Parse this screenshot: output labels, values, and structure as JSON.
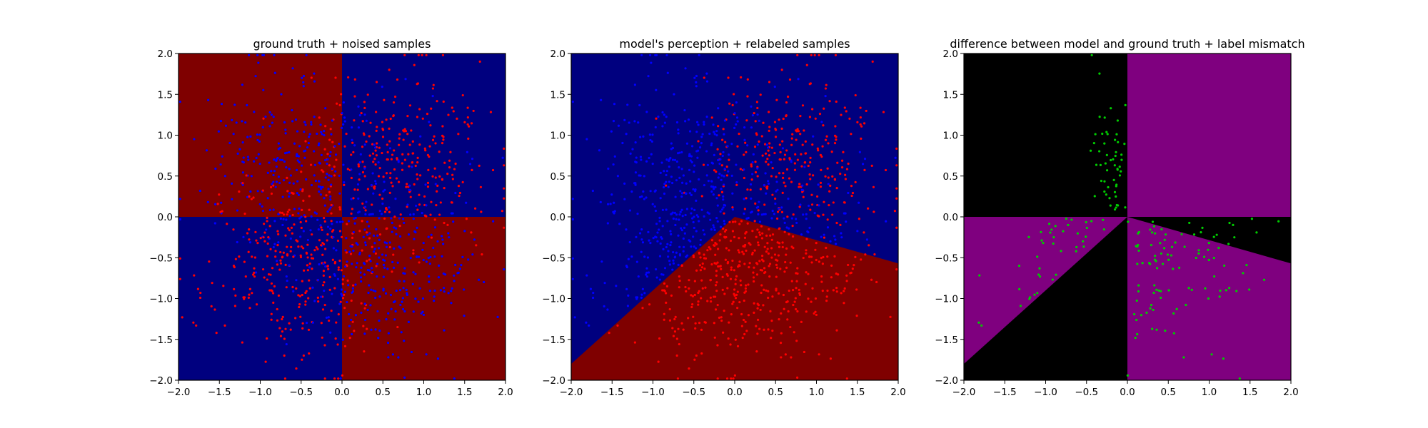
{
  "figure": {
    "background": "#ffffff"
  },
  "colors": {
    "region_blue": "#00007f",
    "region_red": "#7f0000",
    "region_black": "#000000",
    "region_purple": "#7f007f",
    "point_red": "#ff0000",
    "point_blue": "#0000ff",
    "point_green": "#00cc00"
  },
  "chart_data": [
    {
      "type": "scatter",
      "title": "ground truth + noised samples",
      "xlabel": "",
      "ylabel": "",
      "xlim": [
        -2.0,
        2.0
      ],
      "ylim": [
        -2.0,
        2.0
      ],
      "xticks": [
        "−2.0",
        "−1.5",
        "−1.0",
        "−0.5",
        "0.0",
        "0.5",
        "1.0",
        "1.5",
        "2.0"
      ],
      "yticks": [
        "−2.0",
        "−1.5",
        "−1.0",
        "−0.5",
        "0.0",
        "0.5",
        "1.0",
        "1.5",
        "2.0"
      ],
      "grid": false,
      "background_regions": "quadrants: red where x·y < 0 (x<0,y>0 and x>0,y<0); blue where x·y > 0",
      "series": [
        {
          "color": "red",
          "approx_count": 600,
          "description": "samples labeled red; dense in x>0,y>0 (0.1–1.5, 0–1.5) and x<0,y<0 (−1.5–0, −1.5–0)"
        },
        {
          "color": "blue",
          "approx_count": 600,
          "description": "samples labeled blue; dense in x<0,y>0 (−1.3–0, 0–1.5) and x>0,y<0 (0–1.2, −1.5–0)"
        }
      ]
    },
    {
      "type": "scatter",
      "title": "model's perception + relabeled samples",
      "xlabel": "",
      "ylabel": "",
      "xlim": [
        -2.0,
        2.0
      ],
      "ylim": [
        -2.0,
        2.0
      ],
      "xticks": [
        "−2.0",
        "−1.5",
        "−1.0",
        "−0.5",
        "0.0",
        "0.5",
        "1.0",
        "1.5",
        "2.0"
      ],
      "yticks": [
        "−2.0",
        "−1.5",
        "−1.0",
        "−0.5",
        "0.0",
        "0.5",
        "1.0",
        "1.5",
        "2.0"
      ],
      "grid": false,
      "background_regions": "red wedge bounded by lines from (0,0) to (−2,−1.8) and from (0,0) to (2,−0.57); blue elsewhere",
      "decision_boundary": [
        [
          -2.0,
          -1.8
        ],
        [
          0.0,
          0.0
        ],
        [
          2.0,
          -0.57
        ]
      ],
      "series": [
        {
          "color": "red",
          "approx_count": 700,
          "description": "samples relabeled red: upper-right cluster and all points inside the red wedge"
        },
        {
          "color": "blue",
          "approx_count": 500,
          "description": "samples relabeled blue: upper-left cluster and lower-left outside the wedge"
        }
      ]
    },
    {
      "type": "scatter",
      "title": "difference between model and ground truth + label mismatch",
      "xlabel": "",
      "ylabel": "",
      "xlim": [
        -2.0,
        2.0
      ],
      "ylim": [
        -2.0,
        2.0
      ],
      "xticks": [
        "−2.0",
        "−1.5",
        "−1.0",
        "−0.5",
        "0.0",
        "0.5",
        "1.0",
        "1.5",
        "2.0"
      ],
      "yticks": [
        "−2.0",
        "−1.5",
        "−1.0",
        "−0.5",
        "0.0",
        "0.5",
        "1.0",
        "1.5",
        "2.0"
      ],
      "grid": false,
      "background_regions": "purple where model differs from ground truth (x>0,y>0; x<0,y<0 above line to (−2,−1.8); x>0,y<0 below line to (2,−0.57)); black elsewhere",
      "series": [
        {
          "color": "green",
          "approx_count": 280,
          "description": "label-mismatch samples, concentrated along x≈0 (y>0), in the lower-left purple wedge and in the lower-right quadrant"
        }
      ]
    }
  ]
}
